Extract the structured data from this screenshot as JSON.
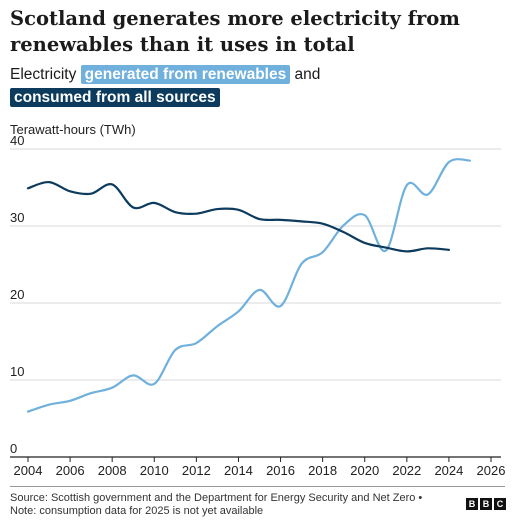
{
  "header": {
    "title": "Scotland generates more electricity from renewables than it uses in total",
    "subtitle_prefix": "Electricity",
    "subtitle_renewables": "generated from renewables",
    "subtitle_and": "and",
    "subtitle_consumed": "consumed from all sources"
  },
  "footer": {
    "source": "Source: Scottish government and the Department for Energy Security and Net Zero • Note: consumption data for 2025 is not yet available",
    "logo_letters": [
      "B",
      "B",
      "C"
    ]
  },
  "colors": {
    "renewables": "#6fb0dd",
    "consumption": "#0d3b5e"
  },
  "chart_data": {
    "type": "line",
    "title": "Scotland generates more electricity from renewables than it uses in total",
    "ylabel": "Terawatt-hours (TWh)",
    "xlabel": "",
    "xlim": [
      2004,
      2026
    ],
    "ylim": [
      0,
      40
    ],
    "x_ticks": [
      "2004",
      "2006",
      "2008",
      "2010",
      "2012",
      "2014",
      "2016",
      "2018",
      "2020",
      "2022",
      "2024",
      "2026"
    ],
    "y_ticks": [
      "0",
      "10",
      "20",
      "30",
      "40"
    ],
    "grid": true,
    "legend": "inline in subtitle",
    "series": [
      {
        "name": "generated from renewables",
        "color": "#6fb0dd",
        "x": [
          2004,
          2005,
          2006,
          2007,
          2008,
          2009,
          2010,
          2011,
          2012,
          2013,
          2014,
          2015,
          2016,
          2017,
          2018,
          2019,
          2020,
          2021,
          2022,
          2023,
          2024,
          2025
        ],
        "values": [
          5.9,
          6.8,
          7.3,
          8.3,
          9.0,
          10.6,
          9.5,
          13.9,
          14.8,
          17.0,
          18.9,
          21.7,
          19.6,
          25.1,
          26.6,
          30.1,
          31.4,
          26.8,
          35.3,
          34.1,
          38.3,
          38.5
        ]
      },
      {
        "name": "consumed from all sources",
        "color": "#0d3b5e",
        "x": [
          2004,
          2005,
          2006,
          2007,
          2008,
          2009,
          2010,
          2011,
          2012,
          2013,
          2014,
          2015,
          2016,
          2017,
          2018,
          2019,
          2020,
          2021,
          2022,
          2023,
          2024
        ],
        "values": [
          34.9,
          35.7,
          34.5,
          34.2,
          35.4,
          32.4,
          33.0,
          31.8,
          31.6,
          32.2,
          32.1,
          30.9,
          30.8,
          30.6,
          30.3,
          29.2,
          27.8,
          27.2,
          26.7,
          27.1,
          26.9
        ]
      }
    ]
  }
}
